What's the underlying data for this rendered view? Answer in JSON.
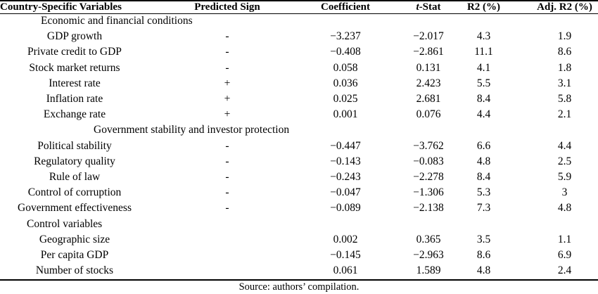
{
  "columns": {
    "variable": "Country-Specific Variables",
    "sign": "Predicted Sign",
    "coefficient": "Coefficient",
    "tstat_italic": "t",
    "tstat_rest": "-Stat",
    "r2": "R2 (%)",
    "adj_r2": "Adj. R2 (%)"
  },
  "rows": [
    {
      "type": "section",
      "label": "Economic and financial conditions"
    },
    {
      "type": "data",
      "variable": "GDP growth",
      "sign": "-",
      "coefficient": "−3.237",
      "tstat": "−2.017",
      "r2": "4.3",
      "adj_r2": "1.9"
    },
    {
      "type": "data",
      "variable": "Private credit to GDP",
      "sign": "-",
      "coefficient": "−0.408",
      "tstat": "−2.861",
      "r2": "11.1",
      "adj_r2": "8.6"
    },
    {
      "type": "data",
      "variable": "Stock market returns",
      "sign": "-",
      "coefficient": "0.058",
      "tstat": "0.131",
      "r2": "4.1",
      "adj_r2": "1.8"
    },
    {
      "type": "data",
      "variable": "Interest rate",
      "sign": "+",
      "coefficient": "0.036",
      "tstat": "2.423",
      "r2": "5.5",
      "adj_r2": "3.1"
    },
    {
      "type": "data",
      "variable": "Inflation rate",
      "sign": "+",
      "coefficient": "0.025",
      "tstat": "2.681",
      "r2": "8.4",
      "adj_r2": "5.8"
    },
    {
      "type": "data",
      "variable": "Exchange rate",
      "sign": "+",
      "coefficient": "0.001",
      "tstat": "0.076",
      "r2": "4.4",
      "adj_r2": "2.1"
    },
    {
      "type": "section",
      "label": "Government stability and investor protection"
    },
    {
      "type": "data",
      "variable": "Political stability",
      "sign": "-",
      "coefficient": "−0.447",
      "tstat": "−3.762",
      "r2": "6.6",
      "adj_r2": "4.4"
    },
    {
      "type": "data",
      "variable": "Regulatory quality",
      "sign": "-",
      "coefficient": "−0.143",
      "tstat": "−0.083",
      "r2": "4.8",
      "adj_r2": "2.5"
    },
    {
      "type": "data",
      "variable": "Rule of law",
      "sign": "-",
      "coefficient": "−0.243",
      "tstat": "−2.278",
      "r2": "8.4",
      "adj_r2": "5.9"
    },
    {
      "type": "data",
      "variable": "Control of corruption",
      "sign": "-",
      "coefficient": "−0.047",
      "tstat": "−1.306",
      "r2": "5.3",
      "adj_r2": "3"
    },
    {
      "type": "data",
      "variable": "Government effectiveness",
      "sign": "-",
      "coefficient": "−0.089",
      "tstat": "−2.138",
      "r2": "7.3",
      "adj_r2": "4.8"
    },
    {
      "type": "section",
      "label": "Control variables"
    },
    {
      "type": "data",
      "variable": "Geographic size",
      "sign": "",
      "coefficient": "0.002",
      "tstat": "0.365",
      "r2": "3.5",
      "adj_r2": "1.1"
    },
    {
      "type": "data",
      "variable": "Per capita GDP",
      "sign": "",
      "coefficient": "−0.145",
      "tstat": "−2.963",
      "r2": "8.6",
      "adj_r2": "6.9"
    },
    {
      "type": "data",
      "variable": "Number of stocks",
      "sign": "",
      "coefficient": "0.061",
      "tstat": "1.589",
      "r2": "4.8",
      "adj_r2": "2.4"
    }
  ],
  "source": "Source: authors’ compilation."
}
